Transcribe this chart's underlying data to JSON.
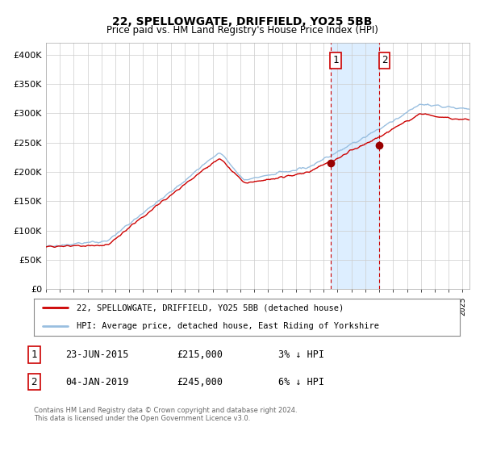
{
  "title": "22, SPELLOWGATE, DRIFFIELD, YO25 5BB",
  "subtitle": "Price paid vs. HM Land Registry's House Price Index (HPI)",
  "ylim": [
    0,
    420000
  ],
  "yticks": [
    0,
    50000,
    100000,
    150000,
    200000,
    250000,
    300000,
    350000,
    400000
  ],
  "ytick_labels": [
    "£0",
    "£50K",
    "£100K",
    "£150K",
    "£200K",
    "£250K",
    "£300K",
    "£350K",
    "£400K"
  ],
  "xlim_start": 1995.0,
  "xlim_end": 2025.5,
  "hpi_color": "#99bfe0",
  "price_color": "#cc0000",
  "marker_color": "#990000",
  "shaded_region_color": "#ddeeff",
  "sale1_date": 2015.48,
  "sale1_price": 215000,
  "sale2_date": 2019.01,
  "sale2_price": 245000,
  "legend_label1": "22, SPELLOWGATE, DRIFFIELD, YO25 5BB (detached house)",
  "legend_label2": "HPI: Average price, detached house, East Riding of Yorkshire",
  "annotation1_label": "1",
  "annotation1_date": "23-JUN-2015",
  "annotation1_price": "£215,000",
  "annotation1_text": "3% ↓ HPI",
  "annotation2_label": "2",
  "annotation2_date": "04-JAN-2019",
  "annotation2_price": "£245,000",
  "annotation2_text": "6% ↓ HPI",
  "footer_text": "Contains HM Land Registry data © Crown copyright and database right 2024.\nThis data is licensed under the Open Government Licence v3.0.",
  "bg_color": "#ffffff",
  "grid_color": "#cccccc",
  "box_color": "#cc0000"
}
